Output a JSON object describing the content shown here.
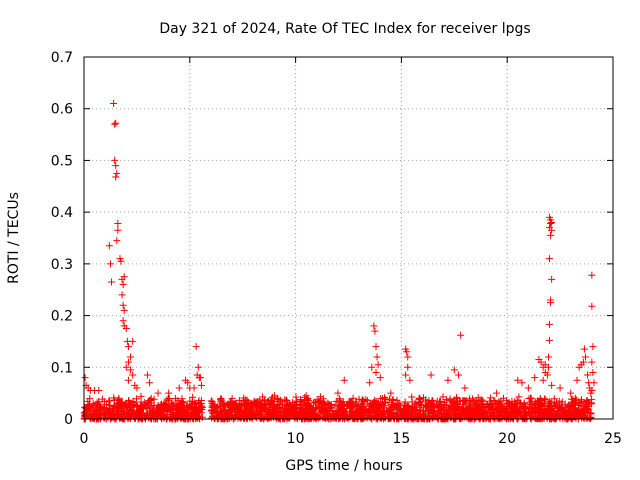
{
  "chart_data": {
    "type": "scatter",
    "title": "Day 321 of 2024, Rate Of TEC Index for receiver lpgs",
    "xlabel": "GPS time / hours",
    "ylabel": "ROTI / TECUs",
    "xlim": [
      0,
      25
    ],
    "ylim": [
      0,
      0.7
    ],
    "x_ticks": [
      0,
      5,
      10,
      15,
      20,
      25
    ],
    "y_ticks": [
      0,
      0.1,
      0.2,
      0.3,
      0.4,
      0.5,
      0.6,
      0.7
    ],
    "grid": true,
    "marker": "+",
    "color": "#ff0000",
    "series": [
      {
        "name": "ROTI",
        "background_band": {
          "segments": [
            [
              0.0,
              5.6
            ],
            [
              6.0,
              24.0
            ]
          ],
          "baseline_max": 0.045,
          "note": "dense noise of points between 0 and ~0.045 TECU/min"
        },
        "points": [
          [
            0.05,
            0.08
          ],
          [
            0.1,
            0.065
          ],
          [
            0.2,
            0.06
          ],
          [
            0.3,
            0.055
          ],
          [
            0.5,
            0.055
          ],
          [
            0.7,
            0.055
          ],
          [
            1.2,
            0.335
          ],
          [
            1.25,
            0.3
          ],
          [
            1.3,
            0.265
          ],
          [
            1.4,
            0.61
          ],
          [
            1.45,
            0.57
          ],
          [
            1.5,
            0.572
          ],
          [
            1.45,
            0.5
          ],
          [
            1.5,
            0.49
          ],
          [
            1.55,
            0.475
          ],
          [
            1.5,
            0.468
          ],
          [
            1.6,
            0.378
          ],
          [
            1.6,
            0.365
          ],
          [
            1.55,
            0.345
          ],
          [
            1.7,
            0.31
          ],
          [
            1.75,
            0.305
          ],
          [
            1.8,
            0.27
          ],
          [
            1.85,
            0.26
          ],
          [
            1.9,
            0.275
          ],
          [
            1.8,
            0.24
          ],
          [
            1.85,
            0.22
          ],
          [
            1.9,
            0.21
          ],
          [
            1.85,
            0.19
          ],
          [
            1.9,
            0.18
          ],
          [
            2.0,
            0.175
          ],
          [
            2.05,
            0.15
          ],
          [
            2.1,
            0.14
          ],
          [
            2.2,
            0.12
          ],
          [
            2.3,
            0.15
          ],
          [
            2.1,
            0.11
          ],
          [
            2.0,
            0.1
          ],
          [
            2.2,
            0.095
          ],
          [
            2.3,
            0.085
          ],
          [
            2.1,
            0.075
          ],
          [
            2.4,
            0.065
          ],
          [
            2.5,
            0.06
          ],
          [
            3.0,
            0.085
          ],
          [
            3.1,
            0.07
          ],
          [
            3.5,
            0.05
          ],
          [
            4.0,
            0.05
          ],
          [
            4.5,
            0.06
          ],
          [
            4.8,
            0.075
          ],
          [
            4.9,
            0.07
          ],
          [
            5.0,
            0.06
          ],
          [
            5.3,
            0.14
          ],
          [
            5.4,
            0.1
          ],
          [
            5.35,
            0.085
          ],
          [
            5.45,
            0.08
          ],
          [
            5.5,
            0.08
          ],
          [
            5.55,
            0.065
          ],
          [
            5.2,
            0.06
          ],
          [
            7.0,
            0.04
          ],
          [
            9.0,
            0.045
          ],
          [
            10.5,
            0.045
          ],
          [
            12.0,
            0.05
          ],
          [
            12.3,
            0.075
          ],
          [
            13.5,
            0.07
          ],
          [
            13.6,
            0.1
          ],
          [
            13.7,
            0.18
          ],
          [
            13.75,
            0.17
          ],
          [
            13.8,
            0.14
          ],
          [
            13.85,
            0.12
          ],
          [
            13.9,
            0.105
          ],
          [
            13.8,
            0.09
          ],
          [
            14.0,
            0.08
          ],
          [
            14.5,
            0.05
          ],
          [
            15.2,
            0.135
          ],
          [
            15.25,
            0.13
          ],
          [
            15.3,
            0.12
          ],
          [
            15.3,
            0.1
          ],
          [
            15.2,
            0.085
          ],
          [
            15.4,
            0.075
          ],
          [
            16.4,
            0.085
          ],
          [
            17.2,
            0.075
          ],
          [
            17.5,
            0.095
          ],
          [
            17.7,
            0.085
          ],
          [
            17.8,
            0.162
          ],
          [
            18.0,
            0.06
          ],
          [
            19.5,
            0.05
          ],
          [
            20.5,
            0.075
          ],
          [
            20.7,
            0.07
          ],
          [
            21.0,
            0.06
          ],
          [
            21.3,
            0.08
          ],
          [
            21.5,
            0.115
          ],
          [
            21.6,
            0.11
          ],
          [
            21.7,
            0.1
          ],
          [
            21.8,
            0.09
          ],
          [
            21.9,
            0.085
          ],
          [
            21.7,
            0.075
          ],
          [
            21.8,
            0.105
          ],
          [
            21.95,
            0.12
          ],
          [
            22.0,
            0.152
          ],
          [
            22.0,
            0.183
          ],
          [
            22.05,
            0.225
          ],
          [
            22.05,
            0.23
          ],
          [
            22.1,
            0.27
          ],
          [
            22.0,
            0.31
          ],
          [
            22.05,
            0.355
          ],
          [
            22.1,
            0.365
          ],
          [
            22.0,
            0.37
          ],
          [
            22.05,
            0.378
          ],
          [
            22.1,
            0.38
          ],
          [
            22.05,
            0.385
          ],
          [
            22.0,
            0.39
          ],
          [
            21.95,
            0.1
          ],
          [
            22.1,
            0.065
          ],
          [
            22.5,
            0.06
          ],
          [
            23.0,
            0.05
          ],
          [
            23.3,
            0.075
          ],
          [
            23.4,
            0.1
          ],
          [
            23.5,
            0.105
          ],
          [
            23.6,
            0.11
          ],
          [
            23.65,
            0.135
          ],
          [
            23.7,
            0.12
          ],
          [
            23.8,
            0.085
          ],
          [
            23.85,
            0.07
          ],
          [
            23.9,
            0.06
          ],
          [
            23.95,
            0.05
          ],
          [
            24.0,
            0.278
          ],
          [
            24.0,
            0.218
          ],
          [
            24.05,
            0.14
          ],
          [
            24.0,
            0.11
          ],
          [
            24.05,
            0.09
          ],
          [
            24.1,
            0.07
          ],
          [
            24.0,
            0.055
          ]
        ]
      }
    ]
  }
}
